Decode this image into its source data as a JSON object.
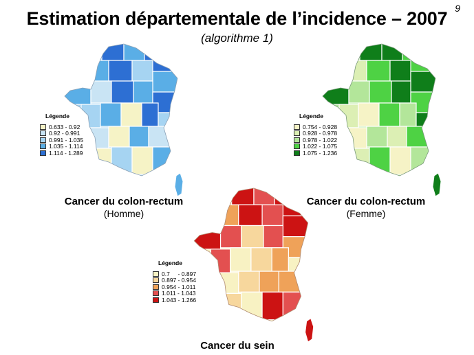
{
  "slide": {
    "page_number": "9",
    "title": "Estimation départementale de l’incidence – 2007",
    "subtitle": "(algorithme 1)"
  },
  "maps": [
    {
      "id": "homme",
      "caption": "Cancer du colon-rectum",
      "subcaption": "(Homme)",
      "legend_title": "Légende",
      "legend": [
        {
          "label": "0.633 - 0.92",
          "color": "#f6f3c6"
        },
        {
          "label": "0.92  - 0.991",
          "color": "#c9e4f4"
        },
        {
          "label": "0.991 - 1.035",
          "color": "#a6d4f2"
        },
        {
          "label": "1.035 - 1.114",
          "color": "#5aaee6"
        },
        {
          "label": "1.114 - 1.289",
          "color": "#2d6fd3"
        }
      ]
    },
    {
      "id": "femme",
      "caption": "Cancer du colon-rectum",
      "subcaption": "(Femme)",
      "legend_title": "Légende",
      "legend": [
        {
          "label": "0.754 - 0.928",
          "color": "#f6f3c6"
        },
        {
          "label": "0.928 - 0.978",
          "color": "#dcefb4"
        },
        {
          "label": "0.978 - 1.022",
          "color": "#b3e69a"
        },
        {
          "label": "1.022 - 1.075",
          "color": "#4ed244"
        },
        {
          "label": "1.075 - 1.236",
          "color": "#0f7e1a"
        }
      ]
    },
    {
      "id": "sein",
      "caption": "Cancer du sein",
      "subcaption": "",
      "legend_title": "Légende",
      "legend": [
        {
          "label": "0.7     - 0.897",
          "color": "#f8f2c3"
        },
        {
          "label": "0.897 - 0.954",
          "color": "#f7d79d"
        },
        {
          "label": "0.954 - 1.011",
          "color": "#efa259"
        },
        {
          "label": "1.011 - 1.043",
          "color": "#e35050"
        },
        {
          "label": "1.043 - 1.266",
          "color": "#cc1313"
        }
      ]
    }
  ]
}
